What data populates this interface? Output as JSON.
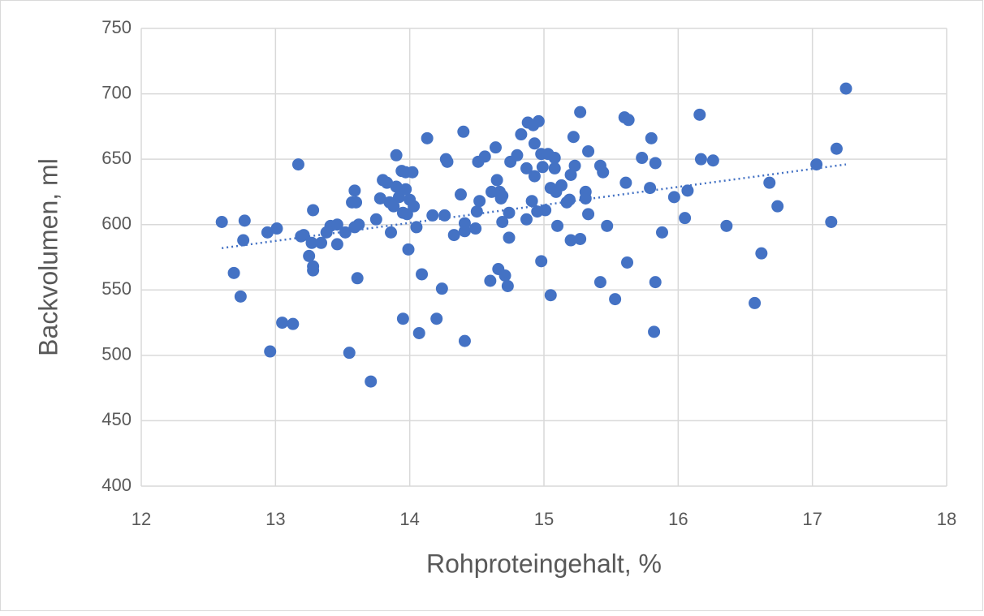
{
  "chart_data": {
    "type": "scatter",
    "x_label": "Rohproteingehalt, %",
    "y_label": "Backvolumen, ml",
    "color": "#4472c4",
    "grid": true,
    "xlim": [
      12,
      18
    ],
    "xticks": [
      12,
      13,
      14,
      15,
      16,
      17,
      18
    ],
    "ylim": [
      400,
      750
    ],
    "yticks": [
      400,
      450,
      500,
      550,
      600,
      650,
      700,
      750
    ],
    "x": [
      12.6,
      12.69,
      12.74,
      12.77,
      12.76,
      12.94,
      12.96,
      13.01,
      13.05,
      13.13,
      13.17,
      13.19,
      13.21,
      13.25,
      13.28,
      13.27,
      13.28,
      13.28,
      13.34,
      13.38,
      13.41,
      13.46,
      13.46,
      13.52,
      13.55,
      13.57,
      13.59,
      13.59,
      13.6,
      13.62,
      13.61,
      13.71,
      13.75,
      13.78,
      13.8,
      13.83,
      13.85,
      13.86,
      13.88,
      13.9,
      13.9,
      13.92,
      13.94,
      13.95,
      13.95,
      13.97,
      13.97,
      13.98,
      13.99,
      14.0,
      14.02,
      14.03,
      14.05,
      14.07,
      14.09,
      14.13,
      14.17,
      14.2,
      14.24,
      14.26,
      14.27,
      14.28,
      14.33,
      14.38,
      14.4,
      14.41,
      14.41,
      14.41,
      14.49,
      14.5,
      14.51,
      14.52,
      14.56,
      14.6,
      14.61,
      14.64,
      14.65,
      14.66,
      14.67,
      14.68,
      14.69,
      14.69,
      14.71,
      14.73,
      14.74,
      14.74,
      14.75,
      14.8,
      14.83,
      14.87,
      14.87,
      14.88,
      14.92,
      14.91,
      14.93,
      14.93,
      14.95,
      14.96,
      14.98,
      14.98,
      14.99,
      15.01,
      15.03,
      15.05,
      15.05,
      15.08,
      15.08,
      15.09,
      15.1,
      15.13,
      15.17,
      15.19,
      15.2,
      15.2,
      15.22,
      15.23,
      15.27,
      15.27,
      15.31,
      15.31,
      15.33,
      15.33,
      15.42,
      15.42,
      15.44,
      15.47,
      15.53,
      15.6,
      15.61,
      15.62,
      15.63,
      15.73,
      15.79,
      15.8,
      15.82,
      15.83,
      15.83,
      15.88,
      15.97,
      16.05,
      16.07,
      16.16,
      16.17,
      16.26,
      16.36,
      16.57,
      16.62,
      16.68,
      16.74,
      17.03,
      17.14,
      17.18,
      17.25
    ],
    "values": [
      602,
      563,
      545,
      603,
      588,
      594,
      503,
      597,
      525,
      524,
      646,
      591,
      592,
      576,
      611,
      586,
      568,
      565,
      586,
      594,
      599,
      600,
      585,
      594,
      502,
      617,
      626,
      598,
      617,
      600,
      559,
      480,
      604,
      620,
      634,
      632,
      617,
      594,
      614,
      653,
      629,
      621,
      641,
      609,
      528,
      640,
      627,
      608,
      581,
      619,
      640,
      614,
      598,
      517,
      562,
      666,
      607,
      528,
      551,
      607,
      650,
      648,
      592,
      623,
      671,
      595,
      601,
      511,
      597,
      610,
      648,
      618,
      652,
      557,
      625,
      659,
      634,
      566,
      625,
      620,
      602,
      622,
      561,
      553,
      609,
      590,
      648,
      653,
      669,
      604,
      643,
      678,
      676,
      618,
      662,
      637,
      610,
      679,
      572,
      654,
      644,
      611,
      654,
      628,
      546,
      643,
      651,
      625,
      599,
      630,
      617,
      619,
      588,
      638,
      667,
      645,
      686,
      589,
      625,
      620,
      656,
      608,
      645,
      556,
      640,
      599,
      543,
      682,
      632,
      571,
      680,
      651,
      628,
      666,
      518,
      556,
      647,
      594,
      621,
      605,
      626,
      684,
      650,
      649,
      599,
      540,
      578,
      632,
      614,
      646,
      602,
      658,
      704
    ],
    "trendline": {
      "x": [
        12.6,
        17.25
      ],
      "y": [
        582,
        646
      ]
    }
  }
}
